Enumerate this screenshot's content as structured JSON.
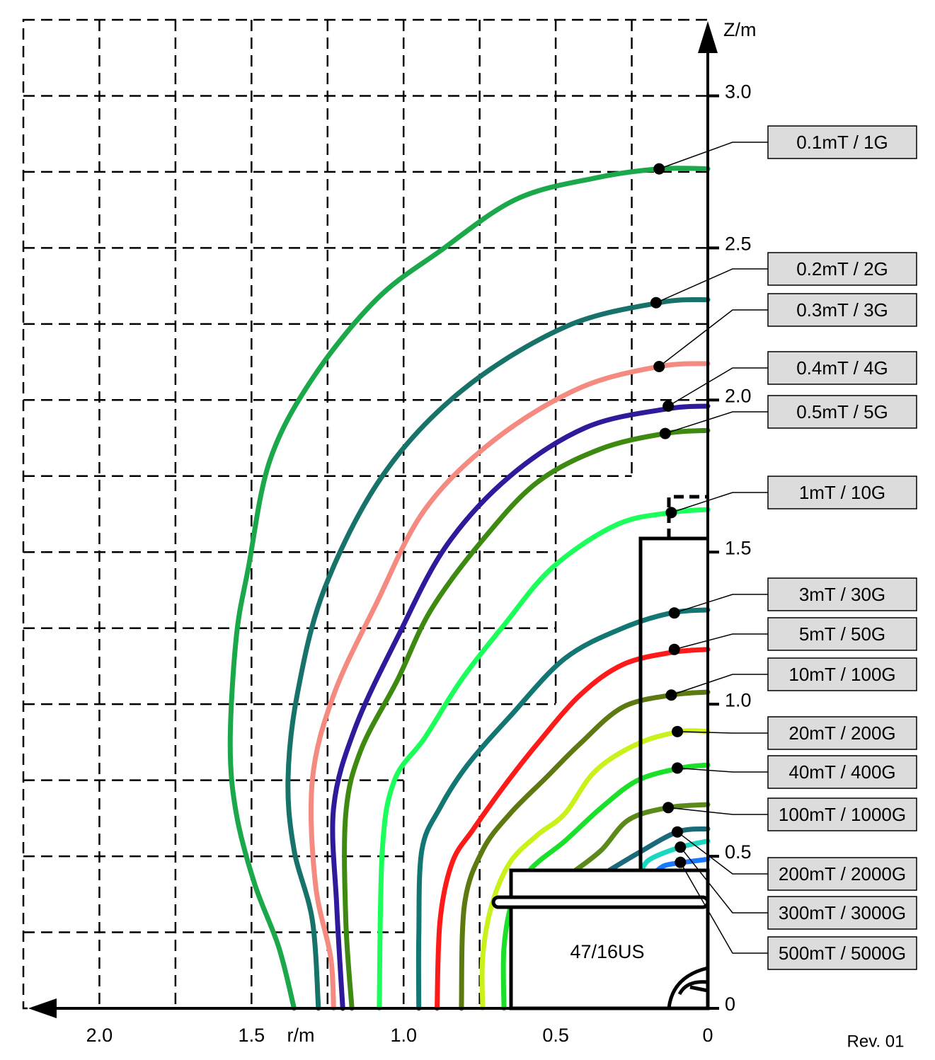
{
  "chart_data": {
    "type": "line",
    "x_label": "r/m",
    "y_label": "Z/m",
    "annotations": [
      "47/16US",
      "Rev. 01"
    ],
    "xlim": [
      2.25,
      0
    ],
    "ylim": [
      0,
      3.25
    ],
    "xticks": [
      {
        "value": 2,
        "label": "2.0"
      },
      1.5,
      {
        "value": 1,
        "label": "1.0"
      },
      0.5,
      0
    ],
    "yticks": [
      0,
      0.5,
      {
        "value": 1,
        "label": "1.0"
      },
      1.5,
      {
        "value": 2,
        "label": "2.0"
      },
      2.5,
      {
        "value": 3,
        "label": "3.0"
      }
    ],
    "xgrid": [
      0.25,
      0.5,
      0.75,
      1,
      1.25,
      1.5,
      1.75,
      2
    ],
    "ygrid": [
      0.25,
      0.5,
      0.75,
      1,
      1.25,
      1.5,
      1.75,
      2,
      2.25,
      2.5,
      2.75,
      3
    ],
    "grid": true,
    "series": [
      {
        "name": "0.1mT / 1G",
        "color": "#1aa84a",
        "marker": [
          0.16,
          2.76
        ],
        "x": [
          0,
          0.16,
          0.37,
          0.63,
          0.88,
          1.09,
          1.3,
          1.44,
          1.51,
          1.55,
          1.57,
          1.55,
          1.49,
          1.41,
          1.36
        ],
        "values": [
          2.76,
          2.76,
          2.73,
          2.66,
          2.49,
          2.33,
          2.07,
          1.8,
          1.45,
          1.22,
          0.87,
          0.64,
          0.41,
          0.2,
          0
        ]
      },
      {
        "name": "0.2mT / 2G",
        "color": "#17736a",
        "marker": [
          0.17,
          2.32
        ],
        "x": [
          0,
          0.16,
          0.47,
          0.81,
          1.07,
          1.26,
          1.35,
          1.38,
          1.36,
          1.3,
          1.28
        ],
        "values": [
          2.33,
          2.32,
          2.24,
          2.03,
          1.75,
          1.38,
          1.03,
          0.75,
          0.52,
          0.29,
          0
        ]
      },
      {
        "name": "0.3mT / 3G",
        "color": "#f48a80",
        "marker": [
          0.16,
          2.11
        ],
        "x": [
          0,
          0.16,
          0.42,
          0.7,
          0.93,
          1.09,
          1.23,
          1.3,
          1.29,
          1.24,
          1.23
        ],
        "values": [
          2.12,
          2.11,
          2.04,
          1.87,
          1.64,
          1.33,
          1.03,
          0.75,
          0.41,
          0.17,
          0
        ]
      },
      {
        "name": "0.4mT / 4G",
        "color": "#2e1a9a",
        "marker": [
          0.13,
          1.98
        ],
        "x": [
          0,
          0.14,
          0.4,
          0.65,
          0.86,
          1.02,
          1.16,
          1.23,
          1.22,
          1.2
        ],
        "values": [
          1.98,
          1.97,
          1.91,
          1.75,
          1.52,
          1.22,
          0.92,
          0.66,
          0.34,
          0
        ]
      },
      {
        "name": "0.5mT / 5G",
        "color": "#3e8a10",
        "marker": [
          0.14,
          1.89
        ],
        "x": [
          0,
          0.14,
          0.35,
          0.56,
          0.74,
          0.91,
          1.02,
          1.14,
          1.19,
          1.19,
          1.17
        ],
        "values": [
          1.9,
          1.89,
          1.84,
          1.73,
          1.54,
          1.31,
          1.08,
          0.85,
          0.64,
          0.29,
          0
        ]
      },
      {
        "name": "1mT / 10G",
        "color": "#1aff5a",
        "marker": [
          0.12,
          1.63
        ],
        "x": [
          0,
          0.12,
          0.3,
          0.51,
          0.67,
          0.81,
          0.93,
          1.03,
          1.07,
          1.08
        ],
        "values": [
          1.64,
          1.63,
          1.59,
          1.45,
          1.26,
          1.08,
          0.89,
          0.75,
          0.52,
          0
        ]
      },
      {
        "name": "3mT / 30G",
        "color": "#127672",
        "marker": [
          0.11,
          1.3
        ],
        "x": [
          0,
          0.12,
          0.28,
          0.47,
          0.65,
          0.79,
          0.88,
          0.94,
          0.95,
          0.95
        ],
        "values": [
          1.31,
          1.3,
          1.25,
          1.15,
          0.96,
          0.8,
          0.66,
          0.52,
          0.24,
          0
        ]
      },
      {
        "name": "5mT / 50G",
        "color": "#ff1a1a",
        "marker": [
          0.11,
          1.18
        ],
        "x": [
          0,
          0.12,
          0.28,
          0.42,
          0.56,
          0.67,
          0.77,
          0.84,
          0.88,
          0.89
        ],
        "values": [
          1.18,
          1.17,
          1.13,
          1.03,
          0.87,
          0.73,
          0.59,
          0.48,
          0.29,
          0
        ]
      },
      {
        "name": "10mT / 100G",
        "color": "#5c7a10",
        "marker": [
          0.12,
          1.03
        ],
        "x": [
          0,
          0.12,
          0.28,
          0.42,
          0.53,
          0.65,
          0.74,
          0.8,
          0.81
        ],
        "values": [
          1.04,
          1.03,
          0.99,
          0.87,
          0.76,
          0.64,
          0.52,
          0.34,
          0
        ]
      },
      {
        "name": "20mT / 200G",
        "color": "#c8f21a",
        "marker": [
          0.1,
          0.91
        ],
        "x": [
          0,
          0.09,
          0.23,
          0.37,
          0.47,
          0.56,
          0.65,
          0.71,
          0.74,
          0.74
        ],
        "values": [
          0.91,
          0.91,
          0.87,
          0.78,
          0.64,
          0.57,
          0.48,
          0.34,
          0.17,
          0
        ]
      },
      {
        "name": "40mT / 400G",
        "color": "#1ae02a",
        "marker": [
          0.1,
          0.79
        ],
        "x": [
          0,
          0.09,
          0.23,
          0.35,
          0.47,
          0.58,
          0.64,
          0.67,
          0.67
        ],
        "values": [
          0.8,
          0.79,
          0.75,
          0.66,
          0.55,
          0.46,
          0.36,
          0.2,
          0
        ]
      },
      {
        "name": "100mT / 1000G",
        "color": "#5c8a1a",
        "marker": [
          0.13,
          0.66
        ],
        "x": [
          0,
          0.13,
          0.26,
          0.35,
          0.44
        ],
        "values": [
          0.67,
          0.66,
          0.62,
          0.52,
          0.45
        ]
      },
      {
        "name": "200mT / 2000G",
        "color": "#1a6a7a",
        "marker": [
          0.1,
          0.58
        ],
        "x": [
          0,
          0.1,
          0.23,
          0.33
        ],
        "values": [
          0.59,
          0.58,
          0.51,
          0.45
        ]
      },
      {
        "name": "300mT / 3000G",
        "color": "#1ad8c0",
        "marker": [
          0.09,
          0.53
        ],
        "x": [
          0,
          0.09,
          0.19,
          0.22
        ],
        "values": [
          0.55,
          0.53,
          0.49,
          0.45
        ]
      },
      {
        "name": "500mT / 5000G",
        "color": "#1a7aff",
        "marker": [
          0.09,
          0.48
        ],
        "x": [
          0,
          0.08,
          0.14,
          0.17
        ],
        "values": [
          0.49,
          0.48,
          0.47,
          0.45
        ]
      }
    ]
  }
}
